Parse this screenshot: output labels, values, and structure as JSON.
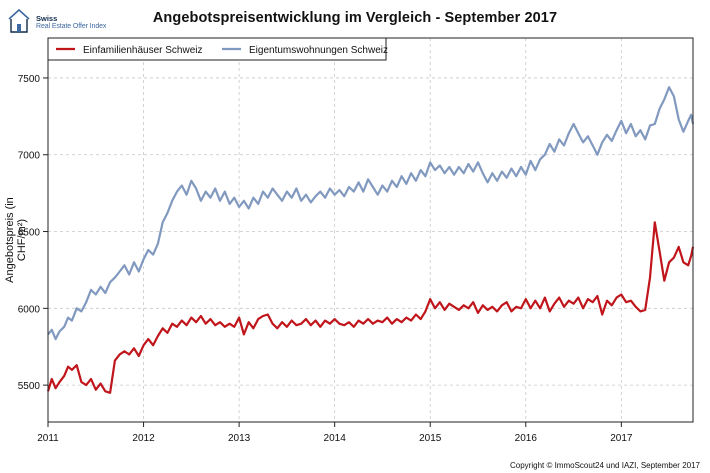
{
  "logo": {
    "line1": "Swiss",
    "line2": "Real Estate Offer Index"
  },
  "copyright": "Copyright © ImmoScout24 und IAZI, September 2017",
  "chart_data": {
    "type": "line",
    "title": "Angebotspreisentwicklung im Vergleich - September 2017",
    "xlabel": "",
    "ylabel": "Angebotspreis (in CHF/m²)",
    "xlim": [
      2011,
      2017.75
    ],
    "ylim": [
      5260,
      7760
    ],
    "x_ticks": [
      {
        "value": 2011,
        "label": "2011"
      },
      {
        "value": 2012,
        "label": "2012"
      },
      {
        "value": 2013,
        "label": "2013"
      },
      {
        "value": 2014,
        "label": "2014"
      },
      {
        "value": 2015,
        "label": "2015"
      },
      {
        "value": 2016,
        "label": "2016"
      },
      {
        "value": 2017,
        "label": "2017"
      }
    ],
    "y_ticks": [
      {
        "value": 5500,
        "label": "5500"
      },
      {
        "value": 6000,
        "label": "6000"
      },
      {
        "value": 6500,
        "label": "6500"
      },
      {
        "value": 7000,
        "label": "7000"
      },
      {
        "value": 7500,
        "label": "7500"
      }
    ],
    "grid": true,
    "legend_position": "top-left",
    "series": [
      {
        "name": "Einfamilienhäuser Schweiz",
        "color": "#c0151b",
        "points": [
          [
            2011.0,
            5460
          ],
          [
            2011.04,
            5540
          ],
          [
            2011.08,
            5480
          ],
          [
            2011.12,
            5520
          ],
          [
            2011.17,
            5560
          ],
          [
            2011.21,
            5620
          ],
          [
            2011.25,
            5600
          ],
          [
            2011.3,
            5630
          ],
          [
            2011.35,
            5520
          ],
          [
            2011.4,
            5500
          ],
          [
            2011.45,
            5540
          ],
          [
            2011.5,
            5470
          ],
          [
            2011.55,
            5510
          ],
          [
            2011.6,
            5460
          ],
          [
            2011.65,
            5450
          ],
          [
            2011.7,
            5660
          ],
          [
            2011.75,
            5700
          ],
          [
            2011.8,
            5720
          ],
          [
            2011.85,
            5700
          ],
          [
            2011.9,
            5740
          ],
          [
            2011.95,
            5690
          ],
          [
            2012.0,
            5760
          ],
          [
            2012.05,
            5800
          ],
          [
            2012.1,
            5760
          ],
          [
            2012.15,
            5820
          ],
          [
            2012.2,
            5870
          ],
          [
            2012.25,
            5840
          ],
          [
            2012.3,
            5900
          ],
          [
            2012.35,
            5880
          ],
          [
            2012.4,
            5920
          ],
          [
            2012.45,
            5890
          ],
          [
            2012.5,
            5940
          ],
          [
            2012.55,
            5910
          ],
          [
            2012.6,
            5950
          ],
          [
            2012.65,
            5900
          ],
          [
            2012.7,
            5930
          ],
          [
            2012.75,
            5890
          ],
          [
            2012.8,
            5910
          ],
          [
            2012.85,
            5880
          ],
          [
            2012.9,
            5900
          ],
          [
            2012.95,
            5880
          ],
          [
            2013.0,
            5940
          ],
          [
            2013.05,
            5830
          ],
          [
            2013.1,
            5910
          ],
          [
            2013.15,
            5870
          ],
          [
            2013.2,
            5930
          ],
          [
            2013.25,
            5950
          ],
          [
            2013.3,
            5960
          ],
          [
            2013.35,
            5900
          ],
          [
            2013.4,
            5870
          ],
          [
            2013.45,
            5910
          ],
          [
            2013.5,
            5880
          ],
          [
            2013.55,
            5920
          ],
          [
            2013.6,
            5890
          ],
          [
            2013.65,
            5900
          ],
          [
            2013.7,
            5930
          ],
          [
            2013.75,
            5890
          ],
          [
            2013.8,
            5920
          ],
          [
            2013.85,
            5880
          ],
          [
            2013.9,
            5920
          ],
          [
            2013.95,
            5900
          ],
          [
            2014.0,
            5930
          ],
          [
            2014.05,
            5900
          ],
          [
            2014.1,
            5890
          ],
          [
            2014.15,
            5910
          ],
          [
            2014.2,
            5880
          ],
          [
            2014.25,
            5920
          ],
          [
            2014.3,
            5900
          ],
          [
            2014.35,
            5930
          ],
          [
            2014.4,
            5900
          ],
          [
            2014.45,
            5920
          ],
          [
            2014.5,
            5910
          ],
          [
            2014.55,
            5940
          ],
          [
            2014.6,
            5900
          ],
          [
            2014.65,
            5930
          ],
          [
            2014.7,
            5910
          ],
          [
            2014.75,
            5940
          ],
          [
            2014.8,
            5920
          ],
          [
            2014.85,
            5960
          ],
          [
            2014.9,
            5930
          ],
          [
            2014.95,
            5980
          ],
          [
            2015.0,
            6060
          ],
          [
            2015.05,
            6000
          ],
          [
            2015.1,
            6040
          ],
          [
            2015.15,
            5990
          ],
          [
            2015.2,
            6030
          ],
          [
            2015.25,
            6010
          ],
          [
            2015.3,
            5990
          ],
          [
            2015.35,
            6020
          ],
          [
            2015.4,
            6000
          ],
          [
            2015.45,
            6040
          ],
          [
            2015.5,
            5970
          ],
          [
            2015.55,
            6020
          ],
          [
            2015.6,
            5990
          ],
          [
            2015.65,
            6010
          ],
          [
            2015.7,
            5980
          ],
          [
            2015.75,
            6020
          ],
          [
            2015.8,
            6040
          ],
          [
            2015.85,
            5980
          ],
          [
            2015.9,
            6010
          ],
          [
            2015.95,
            6000
          ],
          [
            2016.0,
            6060
          ],
          [
            2016.05,
            6000
          ],
          [
            2016.1,
            6050
          ],
          [
            2016.15,
            6000
          ],
          [
            2016.2,
            6070
          ],
          [
            2016.25,
            5980
          ],
          [
            2016.3,
            6030
          ],
          [
            2016.35,
            6070
          ],
          [
            2016.4,
            6010
          ],
          [
            2016.45,
            6050
          ],
          [
            2016.5,
            6030
          ],
          [
            2016.55,
            6070
          ],
          [
            2016.6,
            6000
          ],
          [
            2016.65,
            6060
          ],
          [
            2016.7,
            6040
          ],
          [
            2016.75,
            6080
          ],
          [
            2016.8,
            5960
          ],
          [
            2016.85,
            6050
          ],
          [
            2016.9,
            6020
          ],
          [
            2016.95,
            6070
          ],
          [
            2017.0,
            6090
          ],
          [
            2017.05,
            6040
          ],
          [
            2017.1,
            6050
          ],
          [
            2017.15,
            6010
          ],
          [
            2017.2,
            5980
          ],
          [
            2017.25,
            5990
          ],
          [
            2017.3,
            6200
          ],
          [
            2017.35,
            6560
          ],
          [
            2017.4,
            6370
          ],
          [
            2017.45,
            6180
          ],
          [
            2017.5,
            6300
          ],
          [
            2017.55,
            6330
          ],
          [
            2017.6,
            6400
          ],
          [
            2017.65,
            6300
          ],
          [
            2017.7,
            6280
          ],
          [
            2017.73,
            6340
          ],
          [
            2017.75,
            6400
          ]
        ]
      },
      {
        "name": "Eigentumswohnungen Schweiz",
        "color": "#8199bf",
        "points": [
          [
            2011.0,
            5830
          ],
          [
            2011.04,
            5860
          ],
          [
            2011.08,
            5800
          ],
          [
            2011.12,
            5850
          ],
          [
            2011.17,
            5880
          ],
          [
            2011.21,
            5940
          ],
          [
            2011.25,
            5920
          ],
          [
            2011.3,
            6000
          ],
          [
            2011.35,
            5980
          ],
          [
            2011.4,
            6040
          ],
          [
            2011.45,
            6120
          ],
          [
            2011.5,
            6090
          ],
          [
            2011.55,
            6140
          ],
          [
            2011.6,
            6100
          ],
          [
            2011.65,
            6170
          ],
          [
            2011.7,
            6200
          ],
          [
            2011.75,
            6240
          ],
          [
            2011.8,
            6280
          ],
          [
            2011.85,
            6220
          ],
          [
            2011.9,
            6300
          ],
          [
            2011.95,
            6240
          ],
          [
            2012.0,
            6320
          ],
          [
            2012.05,
            6380
          ],
          [
            2012.1,
            6350
          ],
          [
            2012.15,
            6420
          ],
          [
            2012.2,
            6560
          ],
          [
            2012.25,
            6620
          ],
          [
            2012.3,
            6700
          ],
          [
            2012.35,
            6760
          ],
          [
            2012.4,
            6800
          ],
          [
            2012.45,
            6740
          ],
          [
            2012.5,
            6830
          ],
          [
            2012.55,
            6780
          ],
          [
            2012.6,
            6700
          ],
          [
            2012.65,
            6760
          ],
          [
            2012.7,
            6720
          ],
          [
            2012.75,
            6780
          ],
          [
            2012.8,
            6700
          ],
          [
            2012.85,
            6760
          ],
          [
            2012.9,
            6680
          ],
          [
            2012.95,
            6720
          ],
          [
            2013.0,
            6660
          ],
          [
            2013.05,
            6700
          ],
          [
            2013.1,
            6650
          ],
          [
            2013.15,
            6720
          ],
          [
            2013.2,
            6680
          ],
          [
            2013.25,
            6760
          ],
          [
            2013.3,
            6720
          ],
          [
            2013.35,
            6780
          ],
          [
            2013.4,
            6740
          ],
          [
            2013.45,
            6700
          ],
          [
            2013.5,
            6760
          ],
          [
            2013.55,
            6720
          ],
          [
            2013.6,
            6780
          ],
          [
            2013.65,
            6700
          ],
          [
            2013.7,
            6740
          ],
          [
            2013.75,
            6690
          ],
          [
            2013.8,
            6730
          ],
          [
            2013.85,
            6760
          ],
          [
            2013.9,
            6720
          ],
          [
            2013.95,
            6780
          ],
          [
            2014.0,
            6740
          ],
          [
            2014.05,
            6770
          ],
          [
            2014.1,
            6730
          ],
          [
            2014.15,
            6790
          ],
          [
            2014.2,
            6760
          ],
          [
            2014.25,
            6820
          ],
          [
            2014.3,
            6760
          ],
          [
            2014.35,
            6840
          ],
          [
            2014.4,
            6790
          ],
          [
            2014.45,
            6740
          ],
          [
            2014.5,
            6800
          ],
          [
            2014.55,
            6760
          ],
          [
            2014.6,
            6830
          ],
          [
            2014.65,
            6790
          ],
          [
            2014.7,
            6860
          ],
          [
            2014.75,
            6810
          ],
          [
            2014.8,
            6880
          ],
          [
            2014.85,
            6830
          ],
          [
            2014.9,
            6900
          ],
          [
            2014.95,
            6860
          ],
          [
            2015.0,
            6950
          ],
          [
            2015.05,
            6900
          ],
          [
            2015.1,
            6930
          ],
          [
            2015.15,
            6880
          ],
          [
            2015.2,
            6920
          ],
          [
            2015.25,
            6870
          ],
          [
            2015.3,
            6920
          ],
          [
            2015.35,
            6880
          ],
          [
            2015.4,
            6940
          ],
          [
            2015.45,
            6890
          ],
          [
            2015.5,
            6950
          ],
          [
            2015.55,
            6880
          ],
          [
            2015.6,
            6820
          ],
          [
            2015.65,
            6880
          ],
          [
            2015.7,
            6830
          ],
          [
            2015.75,
            6890
          ],
          [
            2015.8,
            6850
          ],
          [
            2015.85,
            6910
          ],
          [
            2015.9,
            6860
          ],
          [
            2015.95,
            6920
          ],
          [
            2016.0,
            6870
          ],
          [
            2016.05,
            6960
          ],
          [
            2016.1,
            6900
          ],
          [
            2016.15,
            6970
          ],
          [
            2016.2,
            7000
          ],
          [
            2016.25,
            7070
          ],
          [
            2016.3,
            7020
          ],
          [
            2016.35,
            7100
          ],
          [
            2016.4,
            7060
          ],
          [
            2016.45,
            7140
          ],
          [
            2016.5,
            7200
          ],
          [
            2016.55,
            7140
          ],
          [
            2016.6,
            7080
          ],
          [
            2016.65,
            7120
          ],
          [
            2016.7,
            7060
          ],
          [
            2016.75,
            7000
          ],
          [
            2016.8,
            7080
          ],
          [
            2016.85,
            7130
          ],
          [
            2016.9,
            7090
          ],
          [
            2016.95,
            7160
          ],
          [
            2017.0,
            7220
          ],
          [
            2017.05,
            7140
          ],
          [
            2017.1,
            7200
          ],
          [
            2017.15,
            7120
          ],
          [
            2017.2,
            7160
          ],
          [
            2017.25,
            7100
          ],
          [
            2017.3,
            7190
          ],
          [
            2017.35,
            7200
          ],
          [
            2017.4,
            7300
          ],
          [
            2017.45,
            7360
          ],
          [
            2017.5,
            7440
          ],
          [
            2017.55,
            7380
          ],
          [
            2017.6,
            7230
          ],
          [
            2017.65,
            7150
          ],
          [
            2017.7,
            7220
          ],
          [
            2017.73,
            7260
          ],
          [
            2017.75,
            7200
          ]
        ]
      }
    ]
  }
}
